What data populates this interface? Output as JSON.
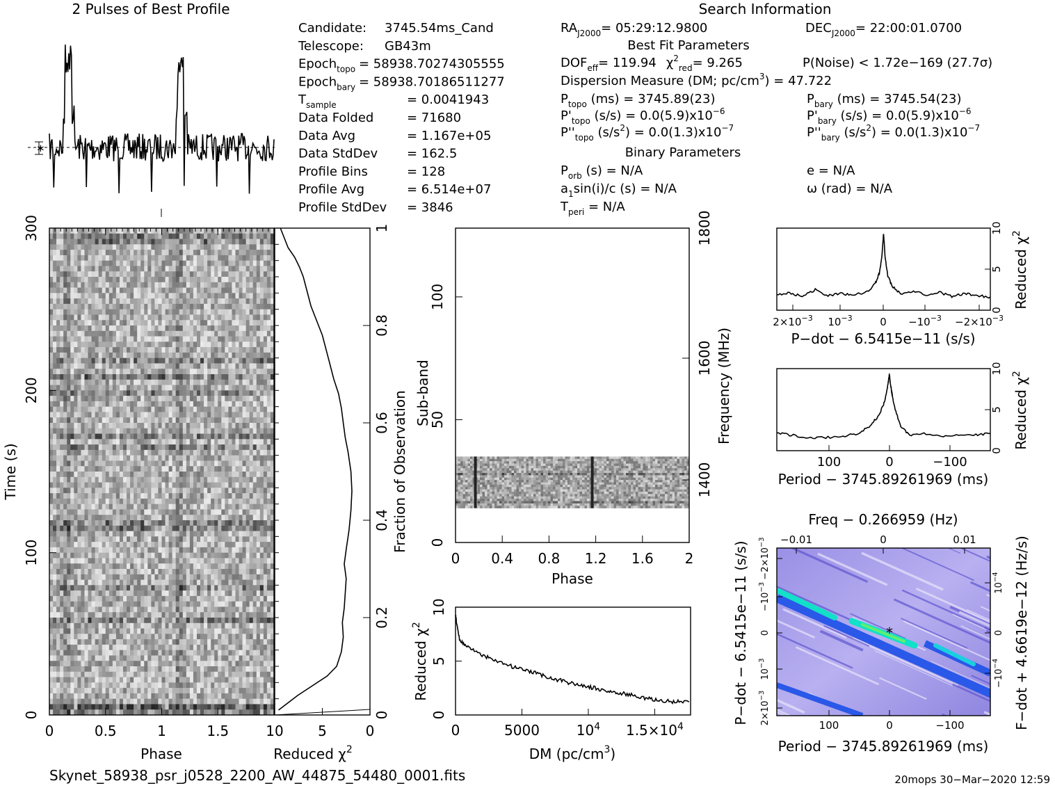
{
  "profile": {
    "title": "2 Pulses of Best Profile"
  },
  "search_info": {
    "title": "Search Information",
    "col1": [
      {
        "label": "Candidate:",
        "value": "3745.54ms_Cand"
      },
      {
        "label": "Telescope:",
        "value": "GB43m"
      },
      {
        "label": "Epoch",
        "sub": "topo",
        "value": "= 58938.70274305555"
      },
      {
        "label": "Epoch",
        "sub": "bary",
        "value": "= 58938.70186511277"
      },
      {
        "label": "T",
        "sub": "sample",
        "value": "=   0.0041943"
      },
      {
        "label": "Data Folded",
        "value": "=   71680"
      },
      {
        "label": "Data Avg",
        "value": "=   1.167e+05"
      },
      {
        "label": "Data StdDev",
        "value": "=   162.5"
      },
      {
        "label": "Profile Bins",
        "value": "=   128"
      },
      {
        "label": "Profile Avg",
        "value": "=   6.514e+07"
      },
      {
        "label": "Profile StdDev",
        "value": "=   3846"
      }
    ],
    "ra": "RA",
    "ra_sub": "J2000",
    "ra_value": "= 05:29:12.9800",
    "dec": "DEC",
    "dec_sub": "J2000",
    "dec_value": "= 22:00:01.0700",
    "best_fit_title": "Best Fit Parameters",
    "dof_label": "DOF",
    "dof_sub": "eff",
    "dof_value": "= 119.94",
    "chi_label": "χ",
    "chi_sup": "2",
    "chi_sub": "red",
    "chi_value": "= 9.265",
    "pnoise": "P(Noise) < 1.72e−169   (27.7σ)",
    "dm_line": "Dispersion Measure (DM; pc/cm",
    "dm_sup": "3",
    "dm_value": ") = 47.722",
    "ptopo": {
      "label": "P",
      "sub": "topo",
      "value": " (ms) =  3745.89(23)"
    },
    "pbary": {
      "label": "P",
      "sub": "bary",
      "value": " (ms) =  3745.54(23)"
    },
    "pdtopo": {
      "label": "P'",
      "sub": "topo",
      "value": " (s/s) = 0.0(5.9)x10",
      "sup": "−6"
    },
    "pdbary": {
      "label": "P'",
      "sub": "bary",
      "value": " (s/s) = 0.0(5.9)x10",
      "sup": "−6"
    },
    "pddtopo": {
      "label": "P''",
      "sub": "topo",
      "value": " (s/s",
      "sup2": "2",
      "value2": ") = 0.0(1.3)x10",
      "sup": "−7"
    },
    "pddbary": {
      "label": "P''",
      "sub": "bary",
      "value": " (s/s",
      "sup2": "2",
      "value2": ") = 0.0(1.3)x10",
      "sup": "−7"
    },
    "binary_title": "Binary Parameters",
    "porb": {
      "label": "P",
      "sub": "orb",
      "value": " (s) = N/A"
    },
    "ecc": "e = N/A",
    "asini": {
      "label": "a",
      "sub": "1",
      "value": "sin(i)/c (s) = N/A"
    },
    "omega": "ω (rad) = N/A",
    "tperi": {
      "label": "T",
      "sub": "peri",
      "value": " = N/A"
    }
  },
  "chart_data": [
    {
      "id": "time-phase",
      "type": "heatmap",
      "xlabel": "Phase",
      "ylabel": "Time (s)",
      "xlim": [
        0,
        2
      ],
      "ylim": [
        0,
        300
      ],
      "xticks": [
        "0",
        "0.5",
        "1",
        "1.5"
      ],
      "yticks": [
        "0",
        "100",
        "200",
        "300"
      ]
    },
    {
      "id": "time-chi2",
      "type": "line",
      "xlabel": "Reduced χ",
      "xlabel_sup": "2",
      "ylabel": "Fraction of Observation",
      "xlim": [
        10,
        0
      ],
      "ylim": [
        0,
        1
      ],
      "xticks": [
        "10",
        "5",
        "0"
      ],
      "yticks": [
        "0",
        "0.2",
        "0.4",
        "0.6",
        "0.8",
        "1"
      ],
      "x": [
        9.6,
        7.6,
        4.5,
        3.5,
        3.0,
        2.8,
        2.9,
        2.7,
        2.6,
        2.5,
        2.7,
        2.5,
        2.2,
        2.0,
        1.9,
        2.0,
        2.3,
        2.6,
        2.8,
        3.0,
        3.3,
        3.8,
        4.2,
        4.6,
        5.0,
        5.6,
        6.2,
        6.6,
        7.0,
        7.4,
        7.9,
        8.6,
        9.0,
        9.4
      ],
      "y": [
        0.01,
        0.04,
        0.08,
        0.1,
        0.13,
        0.16,
        0.19,
        0.22,
        0.25,
        0.28,
        0.31,
        0.34,
        0.38,
        0.42,
        0.46,
        0.5,
        0.54,
        0.57,
        0.6,
        0.63,
        0.66,
        0.69,
        0.72,
        0.75,
        0.78,
        0.81,
        0.84,
        0.87,
        0.9,
        0.92,
        0.94,
        0.96,
        0.98,
        1.0
      ]
    },
    {
      "id": "subband-phase",
      "type": "heatmap",
      "xlabel": "Phase",
      "ylabel": "Sub-band",
      "ylabel_right": "Frequency (MHz)",
      "xlim": [
        0,
        2
      ],
      "ylim": [
        0,
        128
      ],
      "xticks": [
        "0",
        "0.4",
        "0.8",
        "1.2",
        "1.6",
        "2"
      ],
      "yticks": [
        "0",
        "50",
        "100"
      ],
      "yticks_right": [
        "1400",
        "1600",
        "1800"
      ],
      "data_band": [
        14,
        35
      ],
      "pulse_phases": [
        0.17,
        1.17
      ]
    },
    {
      "id": "dm-chi2",
      "type": "line",
      "xlabel": "DM (pc/cm",
      "xlabel_sup": "3",
      "xlabel_end": ")",
      "ylabel": "Reduced χ",
      "ylabel_sup": "2",
      "xlim": [
        0,
        17700
      ],
      "ylim": [
        0,
        10
      ],
      "xticks": [
        "0",
        "5000",
        "10",
        "1.5×10"
      ],
      "xticks_sup": [
        "",
        "",
        "4",
        "4"
      ],
      "yticks": [
        "0",
        "5",
        "10"
      ],
      "x": [
        0,
        100,
        300,
        600,
        1000,
        1500,
        2000,
        2500,
        3000,
        3500,
        4000,
        4500,
        5000,
        5500,
        6000,
        6500,
        7000,
        7500,
        8000,
        8500,
        9000,
        9500,
        10000,
        10500,
        11000,
        11500,
        12000,
        12500,
        13000,
        13500,
        14000,
        14500,
        15000,
        15500,
        16000,
        16500,
        17000,
        17700
      ],
      "y": [
        9.3,
        8.4,
        7.0,
        6.6,
        6.3,
        5.9,
        5.5,
        5.3,
        5.0,
        4.8,
        4.6,
        4.4,
        4.2,
        4.0,
        3.9,
        3.7,
        3.5,
        3.3,
        3.2,
        3.0,
        2.9,
        2.7,
        2.6,
        2.5,
        2.3,
        2.2,
        2.1,
        2.0,
        1.9,
        1.8,
        1.6,
        1.5,
        1.4,
        1.3,
        1.3,
        1.2,
        1.3,
        1.2
      ]
    },
    {
      "id": "pdot-chi2",
      "type": "line",
      "xlabel": "P−dot − 6.5415e−11 (s/s)",
      "ylabel": "Reduced χ",
      "ylabel_sup": "2",
      "xlim": [
        0.0025,
        -0.0025
      ],
      "ylim": [
        0,
        10
      ],
      "xticks": [
        "2×10",
        "10",
        "0",
        "−10",
        "−2×10"
      ],
      "xticks_sup": [
        "−3",
        "−3",
        "",
        "−3",
        "−3"
      ],
      "yticks": [
        "0",
        "5",
        "10"
      ],
      "x": [
        0.0025,
        0.0022,
        0.0019,
        0.0016,
        0.0013,
        0.001,
        0.0007,
        0.0004,
        0.0002,
        0.0001,
        4e-05,
        0.0,
        -4e-05,
        -0.0001,
        -0.0002,
        -0.0004,
        -0.0007,
        -0.001,
        -0.0013,
        -0.0016,
        -0.0019,
        -0.0022,
        -0.0025
      ],
      "y": [
        1.8,
        2.1,
        1.7,
        2.5,
        1.8,
        2.0,
        1.9,
        2.2,
        3.2,
        4.5,
        6.5,
        9.4,
        6.3,
        4.2,
        2.9,
        2.0,
        2.4,
        1.9,
        2.2,
        1.7,
        2.0,
        1.8,
        1.6
      ]
    },
    {
      "id": "period-chi2",
      "type": "line",
      "xlabel": "Period − 3745.89261969 (ms)",
      "ylabel": "Reduced χ",
      "ylabel_sup": "2",
      "xlim": [
        195,
        -175
      ],
      "ylim": [
        0,
        10
      ],
      "xticks": [
        "100",
        "0",
        "−100"
      ],
      "yticks": [
        "0",
        "5",
        "10"
      ],
      "x": [
        195,
        170,
        140,
        110,
        80,
        55,
        35,
        20,
        10,
        5,
        2,
        0,
        -2,
        -5,
        -10,
        -20,
        -35,
        -60,
        -90,
        -120,
        -150,
        -175
      ],
      "y": [
        2.2,
        1.9,
        1.5,
        1.6,
        1.8,
        2.1,
        2.9,
        4.1,
        5.6,
        7.0,
        8.3,
        9.3,
        8.1,
        6.8,
        5.0,
        3.0,
        1.9,
        2.1,
        1.8,
        2.0,
        1.9,
        2.1
      ]
    },
    {
      "id": "ppdot-chi2",
      "type": "heatmap",
      "xlabel": "Period − 3745.89261969 (ms)",
      "xlabel_top": "Freq − 0.266959 (Hz)",
      "ylabel": "P−dot − 6.5415e−11 (s/s)",
      "ylabel_right": "F−dot + 4.6619e−12 (Hz/s)",
      "xlim": [
        195,
        -175
      ],
      "ylim": [
        -0.0025,
        0.0025
      ],
      "xticks": [
        "100",
        "0",
        "−100"
      ],
      "xticks_top": [
        "−0.01",
        "0",
        "0.01"
      ],
      "yticks": [
        "2×10",
        "10",
        "0",
        "−10",
        "−2×10"
      ],
      "yticks_sup": [
        "−3",
        "−3",
        "",
        "−3",
        "−3"
      ],
      "yticks_right": [
        "−10",
        "0",
        "10"
      ],
      "yticks_right_sup": [
        "−4",
        "",
        "−4"
      ],
      "best_marker": "*"
    }
  ],
  "footer": {
    "filename": "Skynet_58938_psr_j0528_2200_AW_44875_54480_0001.fits",
    "stamp": "20mops 30−Mar−2020 12:59"
  }
}
